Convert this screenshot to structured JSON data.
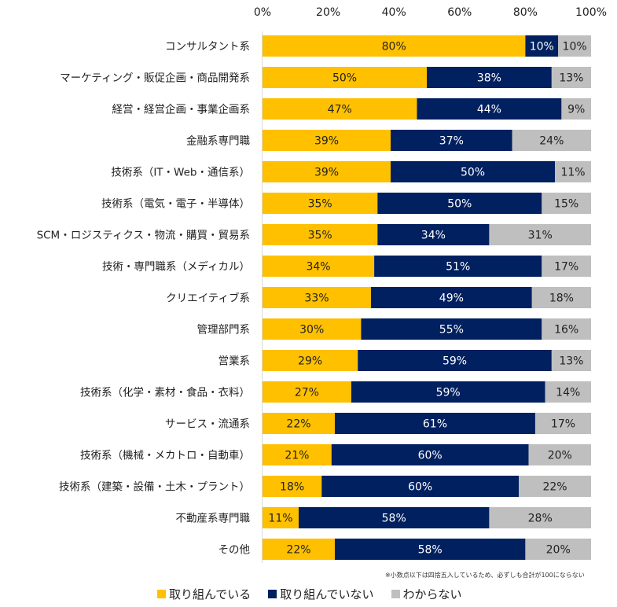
{
  "chart_data": {
    "type": "bar",
    "orientation": "horizontal",
    "stacked": true,
    "title": "",
    "xlabel": "",
    "ylabel": "",
    "xlim": [
      0,
      100
    ],
    "x_ticks": [
      "0%",
      "20%",
      "40%",
      "60%",
      "80%",
      "100%"
    ],
    "x_axis_position": "top",
    "grid": false,
    "legend_position": "bottom",
    "categories": [
      "コンサルタント系",
      "マーケティング・販促企画・商品開発系",
      "経営・経営企画・事業企画系",
      "金融系専門職",
      "技術系（IT・Web・通信系）",
      "技術系（電気・電子・半導体）",
      "SCM・ロジスティクス・物流・購買・貿易系",
      "技術・専門職系（メディカル）",
      "クリエイティブ系",
      "管理部門系",
      "営業系",
      "技術系（化学・素材・食品・衣料）",
      "サービス・流通系",
      "技術系（機械・メカトロ・自動車）",
      "技術系（建築・設備・土木・プラント）",
      "不動産系専門職",
      "その他"
    ],
    "series": [
      {
        "name": "取り組んでいる",
        "color": "#FFC000",
        "label_color": "#222222",
        "values": [
          80,
          50,
          47,
          39,
          39,
          35,
          35,
          34,
          33,
          30,
          29,
          27,
          22,
          21,
          18,
          11,
          22
        ]
      },
      {
        "name": "取り組んでいない",
        "color": "#002060",
        "label_color": "#ffffff",
        "values": [
          10,
          38,
          44,
          37,
          50,
          50,
          34,
          51,
          49,
          55,
          59,
          59,
          61,
          60,
          60,
          58,
          58
        ]
      },
      {
        "name": "わからない",
        "color": "#BFBFBF",
        "label_color": "#222222",
        "values": [
          10,
          13,
          9,
          24,
          11,
          15,
          31,
          17,
          18,
          16,
          13,
          14,
          17,
          20,
          22,
          28,
          20
        ]
      }
    ],
    "value_suffix": "%",
    "footnote": "※小数点以下は四捨五入しているため、必ずしも合計が100にならない"
  }
}
